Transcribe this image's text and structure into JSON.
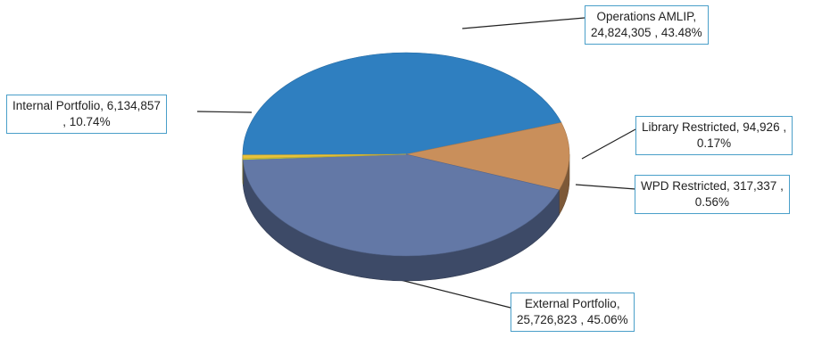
{
  "chart_data": {
    "type": "pie",
    "style": "3d",
    "slices": [
      {
        "name": "External Portfolio",
        "value": 25726823,
        "percent": "45.06%",
        "line1": "External Portfolio,",
        "line2": "25,726,823 , 45.06%",
        "color": "#2f7fc0"
      },
      {
        "name": "Internal Portfolio",
        "value": 6134857,
        "percent": "10.74%",
        "line1": "Internal Portfolio,  6,134,857",
        "line2": ", 10.74%",
        "color": "#c98f5b"
      },
      {
        "name": "Operations AMLIP",
        "value": 24824305,
        "percent": "43.48%",
        "line1": "Operations AMLIP,",
        "line2": "24,824,305 , 43.48%",
        "color": "#6378a6"
      },
      {
        "name": "Library Restricted",
        "value": 94926,
        "percent": "0.17%",
        "line1": "Library Restricted,  94,926 ,",
        "line2": "0.17%",
        "color": "#c9d845"
      },
      {
        "name": "WPD Restricted",
        "value": 317337,
        "percent": "0.56%",
        "line1": "WPD Restricted,  317,337 ,",
        "line2": "0.56%",
        "color": "#e8c23a"
      }
    ]
  }
}
